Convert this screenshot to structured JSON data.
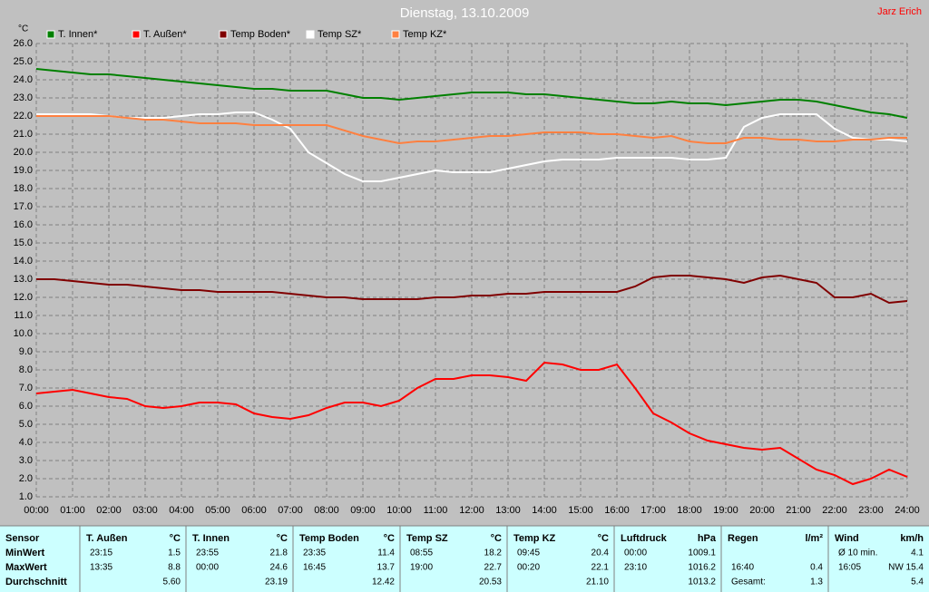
{
  "chart_data": {
    "type": "line",
    "title": "Dienstag, 13.10.2009",
    "author": "Jarz Erich",
    "y_label": "°C",
    "x": [
      0,
      0.5,
      1,
      1.5,
      2,
      2.5,
      3,
      3.5,
      4,
      4.5,
      5,
      5.5,
      6,
      6.5,
      7,
      7.5,
      8,
      8.5,
      9,
      9.5,
      10,
      10.5,
      11,
      11.5,
      12,
      12.5,
      13,
      13.5,
      14,
      14.5,
      15,
      15.5,
      16,
      16.5,
      17,
      17.5,
      18,
      18.5,
      19,
      19.5,
      20,
      20.5,
      21,
      21.5,
      22,
      22.5,
      23,
      23.5,
      24
    ],
    "series": [
      {
        "name": "T. Innen*",
        "color": "#008000",
        "values": [
          24.6,
          24.5,
          24.4,
          24.3,
          24.3,
          24.2,
          24.1,
          24.0,
          23.9,
          23.8,
          23.7,
          23.6,
          23.5,
          23.5,
          23.4,
          23.4,
          23.4,
          23.2,
          23.0,
          23.0,
          22.9,
          23.0,
          23.1,
          23.2,
          23.3,
          23.3,
          23.3,
          23.2,
          23.2,
          23.1,
          23.0,
          22.9,
          22.8,
          22.7,
          22.7,
          22.8,
          22.7,
          22.7,
          22.6,
          22.7,
          22.8,
          22.9,
          22.9,
          22.8,
          22.6,
          22.4,
          22.2,
          22.1,
          21.9
        ]
      },
      {
        "name": "T. Außen*",
        "color": "#ff0000",
        "values": [
          6.7,
          6.8,
          6.9,
          6.7,
          6.5,
          6.4,
          6.0,
          5.9,
          6.0,
          6.2,
          6.2,
          6.1,
          5.6,
          5.4,
          5.3,
          5.5,
          5.9,
          6.2,
          6.2,
          6.0,
          6.3,
          7.0,
          7.5,
          7.5,
          7.7,
          7.7,
          7.6,
          7.4,
          8.4,
          8.3,
          8.0,
          8.0,
          8.3,
          7.0,
          5.6,
          5.1,
          4.5,
          4.1,
          3.9,
          3.7,
          3.6,
          3.7,
          3.1,
          2.5,
          2.2,
          1.7,
          2.0,
          2.5,
          2.1
        ]
      },
      {
        "name": "Temp Boden*",
        "color": "#800000",
        "values": [
          13.0,
          13.0,
          12.9,
          12.8,
          12.7,
          12.7,
          12.6,
          12.5,
          12.4,
          12.4,
          12.3,
          12.3,
          12.3,
          12.3,
          12.2,
          12.1,
          12.0,
          12.0,
          11.9,
          11.9,
          11.9,
          11.9,
          12.0,
          12.0,
          12.1,
          12.1,
          12.2,
          12.2,
          12.3,
          12.3,
          12.3,
          12.3,
          12.3,
          12.6,
          13.1,
          13.2,
          13.2,
          13.1,
          13.0,
          12.8,
          13.1,
          13.2,
          13.0,
          12.8,
          12.0,
          12.0,
          12.2,
          11.7,
          11.8
        ]
      },
      {
        "name": "Temp SZ*",
        "color": "#ffffff",
        "values": [
          22.1,
          22.1,
          22.1,
          22.1,
          22.0,
          21.9,
          21.9,
          21.9,
          22.0,
          22.1,
          22.1,
          22.2,
          22.2,
          21.8,
          21.3,
          20.0,
          19.4,
          18.8,
          18.4,
          18.4,
          18.6,
          18.8,
          19.0,
          18.9,
          18.9,
          18.9,
          19.1,
          19.3,
          19.5,
          19.6,
          19.6,
          19.6,
          19.7,
          19.7,
          19.7,
          19.7,
          19.6,
          19.6,
          19.7,
          21.4,
          21.9,
          22.1,
          22.1,
          22.1,
          21.3,
          20.8,
          20.7,
          20.7,
          20.6
        ]
      },
      {
        "name": "Temp KZ*",
        "color": "#ff8040",
        "values": [
          22.0,
          22.0,
          22.0,
          22.0,
          22.0,
          21.9,
          21.8,
          21.8,
          21.7,
          21.6,
          21.6,
          21.6,
          21.5,
          21.5,
          21.5,
          21.5,
          21.5,
          21.2,
          20.9,
          20.7,
          20.5,
          20.6,
          20.6,
          20.7,
          20.8,
          20.9,
          20.9,
          21.0,
          21.1,
          21.1,
          21.1,
          21.0,
          21.0,
          20.9,
          20.8,
          20.9,
          20.6,
          20.5,
          20.5,
          20.8,
          20.8,
          20.7,
          20.7,
          20.6,
          20.6,
          20.7,
          20.7,
          20.8,
          20.8
        ]
      }
    ],
    "xlim": [
      0,
      24
    ],
    "xticks": [
      {
        "value": 0,
        "label": "00:00"
      },
      {
        "value": 1,
        "label": "01:00"
      },
      {
        "value": 2,
        "label": "02:00"
      },
      {
        "value": 3,
        "label": "03:00"
      },
      {
        "value": 4,
        "label": "04:00"
      },
      {
        "value": 5,
        "label": "05:00"
      },
      {
        "value": 6,
        "label": "06:00"
      },
      {
        "value": 7,
        "label": "07:00"
      },
      {
        "value": 8,
        "label": "08:00"
      },
      {
        "value": 9,
        "label": "09:00"
      },
      {
        "value": 10,
        "label": "10:00"
      },
      {
        "value": 11,
        "label": "11:00"
      },
      {
        "value": 12,
        "label": "12:00"
      },
      {
        "value": 13,
        "label": "13:00"
      },
      {
        "value": 14,
        "label": "14:00"
      },
      {
        "value": 15,
        "label": "15:00"
      },
      {
        "value": 16,
        "label": "16:00"
      },
      {
        "value": 17,
        "label": "17:00"
      },
      {
        "value": 18,
        "label": "18:00"
      },
      {
        "value": 19,
        "label": "19:00"
      },
      {
        "value": 20,
        "label": "20:00"
      },
      {
        "value": 21,
        "label": "21:00"
      },
      {
        "value": 22,
        "label": "22:00"
      },
      {
        "value": 23,
        "label": "23:00"
      },
      {
        "value": 24,
        "label": "24:00"
      }
    ],
    "ylim": [
      1,
      26
    ],
    "yticks": [
      {
        "value": 1,
        "label": "1.0"
      },
      {
        "value": 2,
        "label": "2.0"
      },
      {
        "value": 3,
        "label": "3.0"
      },
      {
        "value": 4,
        "label": "4.0"
      },
      {
        "value": 5,
        "label": "5.0"
      },
      {
        "value": 6,
        "label": "6.0"
      },
      {
        "value": 7,
        "label": "7.0"
      },
      {
        "value": 8,
        "label": "8.0"
      },
      {
        "value": 9,
        "label": "9.0"
      },
      {
        "value": 10,
        "label": "10.0"
      },
      {
        "value": 11,
        "label": "11.0"
      },
      {
        "value": 12,
        "label": "12.0"
      },
      {
        "value": 13,
        "label": "13.0"
      },
      {
        "value": 14,
        "label": "14.0"
      },
      {
        "value": 15,
        "label": "15.0"
      },
      {
        "value": 16,
        "label": "16.0"
      },
      {
        "value": 17,
        "label": "17.0"
      },
      {
        "value": 18,
        "label": "18.0"
      },
      {
        "value": 19,
        "label": "19.0"
      },
      {
        "value": 20,
        "label": "20.0"
      },
      {
        "value": 21,
        "label": "21.0"
      },
      {
        "value": 22,
        "label": "22.0"
      },
      {
        "value": 23,
        "label": "23.0"
      },
      {
        "value": 24,
        "label": "24.0"
      },
      {
        "value": 25,
        "label": "25.0"
      },
      {
        "value": 26,
        "label": "26.0"
      }
    ],
    "grid": true
  },
  "table": {
    "corner": "Sensor",
    "row_labels": [
      "MinWert",
      "MaxWert",
      "Durchschnitt"
    ],
    "columns": [
      {
        "name": "T. Außen",
        "unit": "°C",
        "rows": [
          {
            "time": "23:15",
            "value": "1.5"
          },
          {
            "time": "13:35",
            "value": "8.8"
          },
          {
            "value": "5.60"
          }
        ]
      },
      {
        "name": "T. Innen",
        "unit": "°C",
        "rows": [
          {
            "time": "23:55",
            "value": "21.8"
          },
          {
            "time": "00:00",
            "value": "24.6"
          },
          {
            "value": "23.19"
          }
        ]
      },
      {
        "name": "Temp Boden",
        "unit": "°C",
        "rows": [
          {
            "time": "23:35",
            "value": "11.4"
          },
          {
            "time": "16:45",
            "value": "13.7"
          },
          {
            "value": "12.42"
          }
        ]
      },
      {
        "name": "Temp SZ",
        "unit": "°C",
        "rows": [
          {
            "time": "08:55",
            "value": "18.2"
          },
          {
            "time": "19:00",
            "value": "22.7"
          },
          {
            "value": "20.53"
          }
        ]
      },
      {
        "name": "Temp KZ",
        "unit": "°C",
        "rows": [
          {
            "time": "09:45",
            "value": "20.4"
          },
          {
            "time": "00:20",
            "value": "22.1"
          },
          {
            "value": "21.10"
          }
        ]
      },
      {
        "name": "Luftdruck",
        "unit": "hPa",
        "rows": [
          {
            "time": "00:00",
            "value": "1009.1"
          },
          {
            "time": "23:10",
            "value": "1016.2"
          },
          {
            "value": "1013.2"
          }
        ]
      },
      {
        "name": "Regen",
        "unit": "l/m²",
        "rows": [
          null,
          {
            "time": "16:40",
            "value": "0.4"
          },
          {
            "time": "Gesamt:",
            "value": "1.3"
          }
        ]
      },
      {
        "name": "Wind",
        "unit": "km/h",
        "rows": [
          {
            "time": "Ø 10 min.",
            "value": "4.1"
          },
          {
            "time": "16:05",
            "value": "NW 15.4"
          },
          {
            "value": "5.4"
          }
        ]
      }
    ]
  }
}
